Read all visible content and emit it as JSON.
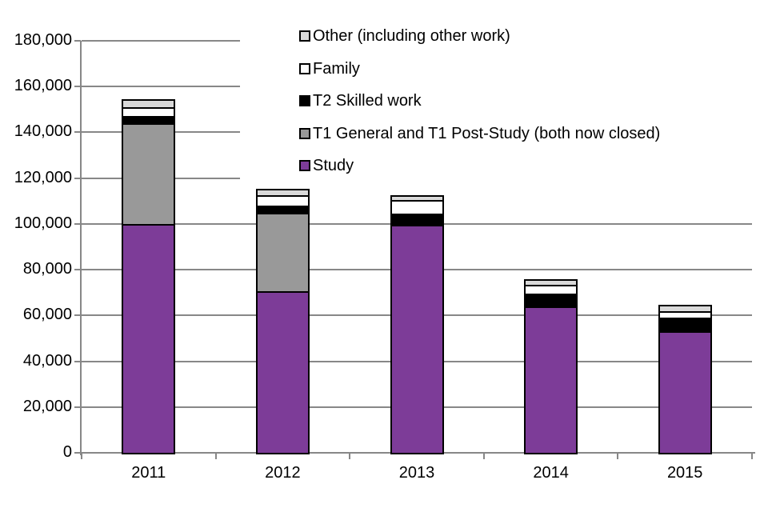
{
  "chart_data": {
    "type": "bar",
    "stacked": true,
    "title": "",
    "xlabel": "",
    "ylabel": "",
    "categories": [
      "2011",
      "2012",
      "2013",
      "2014",
      "2015"
    ],
    "series": [
      {
        "name": "Study",
        "color": "#7D3C98",
        "values": [
          100000,
          70500,
          99500,
          64000,
          53000
        ]
      },
      {
        "name": "T1 General and T1 Post-Study (both now closed)",
        "color": "#999999",
        "values": [
          44000,
          34500,
          0,
          0,
          0
        ]
      },
      {
        "name": "T2 Skilled work",
        "color": "#000000",
        "values": [
          3000,
          3000,
          5000,
          5500,
          6000
        ]
      },
      {
        "name": "Family",
        "color": "#FFFFFF",
        "values": [
          4000,
          4500,
          6000,
          4000,
          3000
        ]
      },
      {
        "name": "Other (including other work)",
        "color": "#D9D9D9",
        "values": [
          3500,
          3000,
          2000,
          2500,
          2500
        ]
      }
    ],
    "legend_order": [
      "Other (including other work)",
      "Family",
      "T2 Skilled work",
      "T1 General and T1 Post-Study (both now closed)",
      "Study"
    ],
    "legend_position": "inside-top-right",
    "ylim": [
      0,
      180000
    ],
    "ytick_step": 20000,
    "yticks": [
      {
        "value": 0,
        "label": "0"
      },
      {
        "value": 20000,
        "label": "20,000"
      },
      {
        "value": 40000,
        "label": "40,000"
      },
      {
        "value": 60000,
        "label": "60,000"
      },
      {
        "value": 80000,
        "label": "80,000"
      },
      {
        "value": 100000,
        "label": "100,000"
      },
      {
        "value": 120000,
        "label": "120,000"
      },
      {
        "value": 140000,
        "label": "140,000"
      },
      {
        "value": 160000,
        "label": "160,000"
      },
      {
        "value": 180000,
        "label": "180,000"
      }
    ],
    "grid": true,
    "colors": {
      "gridline": "#878787",
      "axis": "#878787",
      "bar_border": "#000000",
      "text": "#000000",
      "background": "#FFFFFF"
    }
  }
}
